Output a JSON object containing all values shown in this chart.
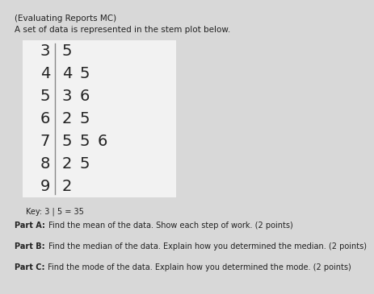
{
  "title": "(Evaluating Reports MC)",
  "subtitle": "A set of data is represented in the stem plot below.",
  "stems": [
    "3",
    "4",
    "5",
    "6",
    "7",
    "8",
    "9"
  ],
  "leaves": [
    [
      "5"
    ],
    [
      "4",
      "5"
    ],
    [
      "3",
      "6"
    ],
    [
      "2",
      "5"
    ],
    [
      "5",
      "5",
      "6"
    ],
    [
      "2",
      "5"
    ],
    [
      "2"
    ]
  ],
  "key_text": "Key: 3 | 5 = 35",
  "part_a_bold": "Part A:",
  "part_a_rest": " Find the mean of the data. Show each step of work. (2 points)",
  "part_b_bold": "Part B:",
  "part_b_rest": " Find the median of the data. Explain how you determined the median. (2 points)",
  "part_c_bold": "Part C:",
  "part_c_rest": " Find the mode of the data. Explain how you determined the mode. (2 points)",
  "bg_color": "#d8d8d8",
  "box_color": "#f2f2f2",
  "text_color": "#222222",
  "font_size_title": 7.5,
  "font_size_subtitle": 7.5,
  "font_size_stem": 14,
  "font_size_key": 7,
  "font_size_parts": 7
}
